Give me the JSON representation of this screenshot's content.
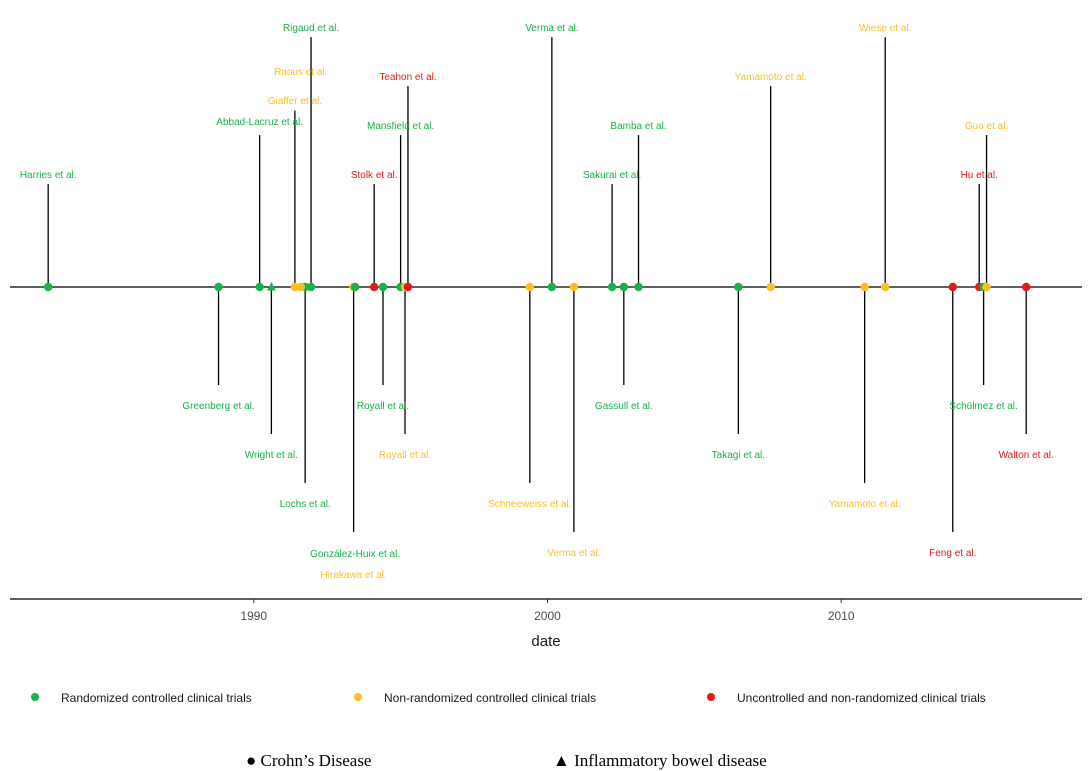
{
  "colors": {
    "rct": "#16b34a",
    "nrct": "#fbbf24",
    "uncontrolled": "#e31a1c",
    "axis": "#000000"
  },
  "chart_data": {
    "type": "timeline",
    "x_axis": {
      "label": "date",
      "ticks": [
        1990,
        2000,
        2010
      ],
      "range": [
        1981.7,
        2018.2
      ]
    },
    "legend": {
      "placement": "bottom",
      "items": [
        {
          "category": "rct",
          "label": "Randomized controlled clinical trials"
        },
        {
          "category": "nrct",
          "label": "Non-randomized controlled clinical trials"
        },
        {
          "category": "uncontrolled",
          "label": "Uncontrolled and non-randomized clinical trials"
        }
      ]
    },
    "shape_legend": {
      "crohns": "● Crohn’s Disease",
      "ibd": "▲ Inflammatory bowel disease"
    },
    "events": [
      {
        "label": "Harries et al.",
        "date": 1983.0,
        "category": "rct",
        "shape": "circle",
        "stem": 2.1
      },
      {
        "label": "Greenberg et al.",
        "date": 1988.8,
        "category": "rct",
        "shape": "circle",
        "stem": -2.0
      },
      {
        "label": "Abbad-Lacruz et al.",
        "date": 1990.2,
        "category": "rct",
        "shape": "circle",
        "stem": 3.1
      },
      {
        "label": "Wright et al.",
        "date": 1990.6,
        "category": "rct",
        "shape": "triangle",
        "stem": -3.0
      },
      {
        "label": "Giaffer et al.",
        "date": 1991.4,
        "category": "nrct",
        "shape": "circle",
        "stem": 3.6
      },
      {
        "label": "Lochs et al.",
        "date": 1991.75,
        "category": "rct",
        "shape": "circle",
        "stem": -4.0
      },
      {
        "label": "Rigaud et al.",
        "date": 1991.95,
        "category": "rct",
        "shape": "circle",
        "stem": 5.1
      },
      {
        "label": "Raous et al.",
        "date": 1991.6,
        "category": "nrct",
        "shape": "circle",
        "stem": 0
      },
      {
        "label": "Hirakawa et al.",
        "date": 1993.4,
        "category": "nrct",
        "shape": "circle",
        "stem": -5.0
      },
      {
        "label": "González-Huix  et al.",
        "date": 1993.45,
        "category": "rct",
        "shape": "circle",
        "stem": 0
      },
      {
        "label": "Stolk et al.",
        "date": 1994.1,
        "category": "uncontrolled",
        "shape": "circle",
        "stem": 2.1
      },
      {
        "label": "Royall et al.",
        "date": 1994.4,
        "category": "rct",
        "shape": "circle",
        "stem": -2.0
      },
      {
        "label": "Mansfield et al.",
        "date": 1995.0,
        "category": "rct",
        "shape": "circle",
        "stem": 3.1
      },
      {
        "label": "Royall et al.",
        "date": 1995.15,
        "category": "nrct",
        "shape": "circle",
        "stem": -3.0
      },
      {
        "label": "Teahon et al.",
        "date": 1995.25,
        "category": "uncontrolled",
        "shape": "circle",
        "stem": 4.1
      },
      {
        "label": "Schneeweiss et al.",
        "date": 1999.4,
        "category": "nrct",
        "shape": "circle",
        "stem": -4.0
      },
      {
        "label": "Verma et al.",
        "date": 2000.15,
        "category": "rct",
        "shape": "circle",
        "stem": 5.1
      },
      {
        "label": "Verma et al.",
        "date": 2000.9,
        "category": "nrct",
        "shape": "circle",
        "stem": -5.0
      },
      {
        "label": "Sakurai et al.",
        "date": 2002.2,
        "category": "rct",
        "shape": "circle",
        "stem": 2.1
      },
      {
        "label": "Gassull et al.",
        "date": 2002.6,
        "category": "rct",
        "shape": "circle",
        "stem": -2.0
      },
      {
        "label": "Bamba  et al.",
        "date": 2003.1,
        "category": "rct",
        "shape": "circle",
        "stem": 3.1
      },
      {
        "label": "Takagi et al.",
        "date": 2006.5,
        "category": "rct",
        "shape": "circle",
        "stem": -3.0
      },
      {
        "label": "Yamamoto et al.",
        "date": 2007.6,
        "category": "nrct",
        "shape": "circle",
        "stem": 4.1
      },
      {
        "label": "Yamamoto et al.",
        "date": 2010.8,
        "category": "nrct",
        "shape": "circle",
        "stem": -4.0
      },
      {
        "label": "Wiese et al.",
        "date": 2011.5,
        "category": "nrct",
        "shape": "circle",
        "stem": 5.1
      },
      {
        "label": "Feng et al.",
        "date": 2013.8,
        "category": "uncontrolled",
        "shape": "circle",
        "stem": -5.0
      },
      {
        "label": "Hu et al.",
        "date": 2014.7,
        "category": "uncontrolled",
        "shape": "circle",
        "stem": 2.1
      },
      {
        "label": "Schülmez et al.",
        "date": 2014.85,
        "category": "rct",
        "shape": "circle",
        "stem": -2.0
      },
      {
        "label": "Guo et al.",
        "date": 2014.95,
        "category": "nrct",
        "shape": "circle",
        "stem": 3.1
      },
      {
        "label": "Walton et al.",
        "date": 2016.3,
        "category": "uncontrolled",
        "shape": "circle",
        "stem": -3.0
      }
    ]
  }
}
